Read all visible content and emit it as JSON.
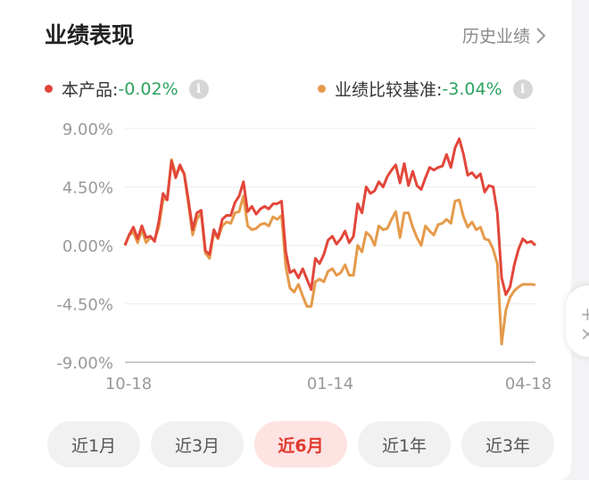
{
  "header": {
    "title": "业绩表现",
    "history_label": "历史业绩"
  },
  "legend": [
    {
      "label": "本产品:",
      "value": "-0.02%",
      "color": "#e2463a"
    },
    {
      "label": "业绩比较基准:",
      "value": "-3.04%",
      "color": "#e59a4a"
    }
  ],
  "tabs": [
    {
      "label": "近1月",
      "active": false
    },
    {
      "label": "近3月",
      "active": false
    },
    {
      "label": "近6月",
      "active": true
    },
    {
      "label": "近1年",
      "active": false
    },
    {
      "label": "近3年",
      "active": false
    }
  ],
  "chart_data": {
    "type": "line",
    "y_ticks": [
      "9.00%",
      "4.50%",
      "0.00%",
      "-4.50%",
      "-9.00%"
    ],
    "ylim": [
      -9,
      9
    ],
    "x_ticks": [
      "10-18",
      "01-14",
      "04-18"
    ],
    "grid": true,
    "legend_position": "top",
    "series": [
      {
        "name": "本产品",
        "color": "#e2463a",
        "values": [
          0.0,
          0.8,
          1.4,
          0.5,
          1.5,
          0.6,
          0.7,
          0.3,
          1.8,
          4.0,
          3.5,
          6.5,
          5.2,
          6.2,
          5.5,
          3.5,
          1.2,
          2.5,
          2.7,
          -0.4,
          -0.7,
          1.2,
          0.6,
          2.0,
          2.3,
          2.3,
          3.3,
          3.8,
          4.9,
          2.6,
          3.0,
          2.4,
          2.8,
          3.0,
          2.8,
          3.2,
          3.2,
          3.4,
          -0.5,
          -2.1,
          -1.9,
          -2.5,
          -1.8,
          -2.6,
          -3.4,
          -1.0,
          -1.4,
          -0.7,
          0.4,
          0.7,
          0.1,
          0.5,
          1.1,
          0.2,
          0.7,
          3.2,
          2.5,
          4.5,
          4.0,
          4.2,
          4.9,
          4.5,
          5.3,
          5.8,
          6.2,
          4.8,
          6.3,
          4.6,
          5.7,
          4.6,
          4.3,
          5.2,
          6.0,
          5.8,
          6.0,
          6.1,
          7.0,
          6.0,
          7.5,
          8.2,
          7.0,
          5.4,
          5.6,
          5.2,
          5.5,
          4.1,
          4.6,
          4.5,
          2.5,
          -2.5,
          -3.8,
          -3.2,
          -1.5,
          -0.3,
          0.5,
          0.2,
          0.3,
          0.0
        ]
      },
      {
        "name": "业绩比较基准",
        "color": "#e59a4a",
        "values": [
          0.0,
          0.8,
          1.0,
          0.2,
          1.2,
          0.2,
          0.6,
          0.4,
          1.4,
          3.5,
          3.6,
          6.6,
          5.5,
          6.0,
          5.5,
          3.2,
          0.8,
          2.0,
          2.5,
          -0.6,
          -1.0,
          1.0,
          0.5,
          1.5,
          1.8,
          1.7,
          2.5,
          2.6,
          3.8,
          1.5,
          1.2,
          1.3,
          1.6,
          1.7,
          1.5,
          2.2,
          2.0,
          2.3,
          -1.6,
          -3.3,
          -3.6,
          -3.0,
          -3.9,
          -4.7,
          -4.7,
          -2.8,
          -2.6,
          -2.8,
          -2.0,
          -1.8,
          -2.3,
          -2.1,
          -1.5,
          -2.3,
          -2.3,
          0.0,
          -0.5,
          1.0,
          0.7,
          0.0,
          1.5,
          1.2,
          1.3,
          2.0,
          2.6,
          0.6,
          2.5,
          2.5,
          1.4,
          0.6,
          0.0,
          1.5,
          1.1,
          0.8,
          1.6,
          1.7,
          2.0,
          1.7,
          3.4,
          3.5,
          2.2,
          1.4,
          1.8,
          1.2,
          1.4,
          0.5,
          0.4,
          -0.3,
          -1.4,
          -7.6,
          -5.0,
          -4.0,
          -3.5,
          -3.2,
          -3.0,
          -3.0,
          -3.0,
          -3.04
        ]
      }
    ]
  }
}
